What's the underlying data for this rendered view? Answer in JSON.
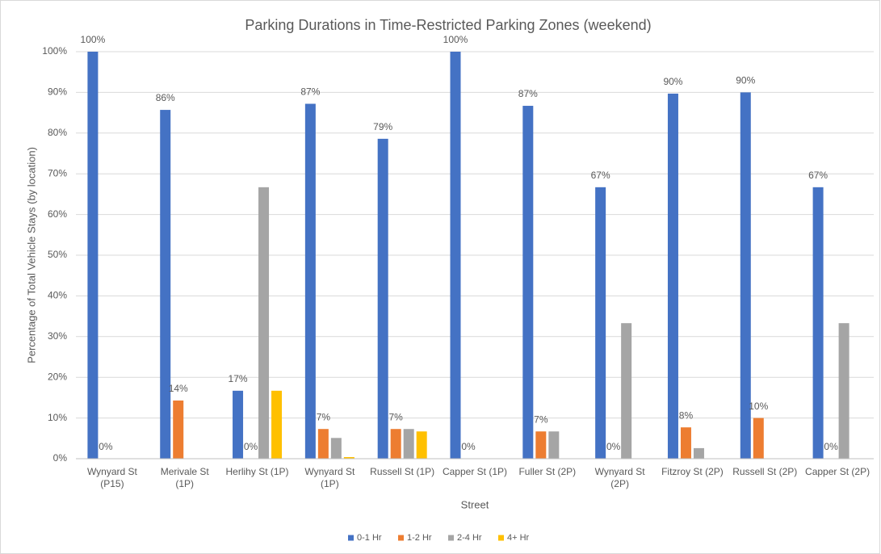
{
  "chart_data": {
    "type": "bar",
    "title": "Parking Durations in Time-Restricted Parking Zones (weekend)",
    "x_label": "Street",
    "y_label": "Percentage of Total Vehicle Stays (by location)",
    "categories": [
      "Wynyard St (P15)",
      "Merivale St (1P)",
      "Herlihy St (1P)",
      "Wynyard St (1P)",
      "Russell St (1P)",
      "Capper St (1P)",
      "Fuller St (2P)",
      "Wynyard St (2P)",
      "Fitzroy St (2P)",
      "Russell St (2P)",
      "Capper St (2P)"
    ],
    "series": [
      {
        "name": "0-1 Hr",
        "color": "#4472c4",
        "values": [
          100,
          85.7,
          16.7,
          87.2,
          78.6,
          100,
          86.7,
          66.7,
          89.7,
          90,
          66.7
        ],
        "value_labels": [
          "100%",
          "86%",
          "17%",
          "87%",
          "79%",
          "100%",
          "87%",
          "67%",
          "90%",
          "90%",
          "67%"
        ]
      },
      {
        "name": "1-2 Hr",
        "color": "#ed7d31",
        "values": [
          0,
          14.3,
          0,
          7.3,
          7.3,
          0,
          6.7,
          0,
          7.7,
          10,
          0
        ],
        "value_labels": [
          "0%",
          "14%",
          "0%",
          "7%",
          "7%",
          "0%",
          "7%",
          "0%",
          "8%",
          "10%",
          "0%"
        ]
      },
      {
        "name": "2-4 Hr",
        "color": "#a5a5a5",
        "values": [
          0,
          0,
          66.7,
          5.1,
          7.3,
          0,
          6.7,
          33.3,
          2.6,
          0,
          33.3
        ]
      },
      {
        "name": "4+ Hr",
        "color": "#ffc000",
        "values": [
          0,
          0,
          16.7,
          0.4,
          6.7,
          0,
          0,
          0,
          0,
          0,
          0
        ]
      }
    ],
    "ylim": [
      0,
      100
    ],
    "yticks": [
      {
        "value": 0,
        "label": "0%"
      },
      {
        "value": 10,
        "label": "10%"
      },
      {
        "value": 20,
        "label": "20%"
      },
      {
        "value": 30,
        "label": "30%"
      },
      {
        "value": 40,
        "label": "40%"
      },
      {
        "value": 50,
        "label": "50%"
      },
      {
        "value": 60,
        "label": "60%"
      },
      {
        "value": 70,
        "label": "70%"
      },
      {
        "value": 80,
        "label": "80%"
      },
      {
        "value": 90,
        "label": "90%"
      },
      {
        "value": 100,
        "label": "100%"
      }
    ],
    "grid": true,
    "legend": "bottom"
  }
}
